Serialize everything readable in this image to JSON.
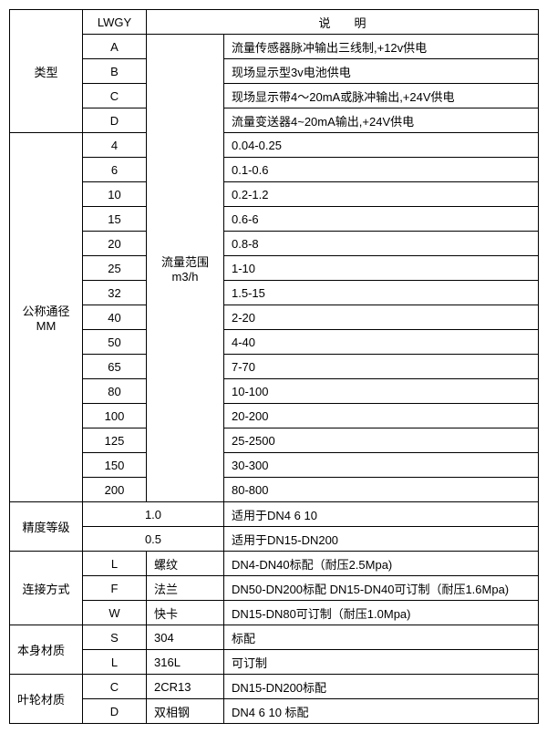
{
  "header": {
    "lwgy": "LWGY",
    "desc": "说　　明"
  },
  "type_section": {
    "label": "类型",
    "rows": [
      {
        "code": "A",
        "desc": "流量传感器脉冲输出三线制,+12v供电"
      },
      {
        "code": "B",
        "desc": "现场显示型3v电池供电"
      },
      {
        "code": "C",
        "desc": "现场显示带4～20mA或脉冲输出,+24V供电"
      },
      {
        "code": "D",
        "desc": "流量变送器4~20mA输出,+24V供电"
      }
    ]
  },
  "diameter_section": {
    "label_top": "公称通径",
    "label_bottom": "MM",
    "range_label_top": "流量范围",
    "range_label_bottom": "m3/h",
    "rows": [
      {
        "code": "4",
        "desc": "0.04-0.25"
      },
      {
        "code": "6",
        "desc": "0.1-0.6"
      },
      {
        "code": "10",
        "desc": "0.2-1.2"
      },
      {
        "code": "15",
        "desc": "0.6-6"
      },
      {
        "code": "20",
        "desc": "0.8-8"
      },
      {
        "code": "25",
        "desc": "1-10"
      },
      {
        "code": "32",
        "desc": "1.5-15"
      },
      {
        "code": "40",
        "desc": "2-20"
      },
      {
        "code": "50",
        "desc": "4-40"
      },
      {
        "code": "65",
        "desc": "7-70"
      },
      {
        "code": "80",
        "desc": "10-100"
      },
      {
        "code": "100",
        "desc": "20-200"
      },
      {
        "code": "125",
        "desc": "25-2500"
      },
      {
        "code": "150",
        "desc": "30-300"
      },
      {
        "code": "200",
        "desc": "80-800"
      }
    ]
  },
  "accuracy_section": {
    "label": "精度等级",
    "rows": [
      {
        "grade": "1.0",
        "desc": "适用于DN4  6  10"
      },
      {
        "grade": "0.5",
        "desc": "适用于DN15-DN200"
      }
    ]
  },
  "connection_section": {
    "label": "连接方式",
    "rows": [
      {
        "code": "L",
        "name": "螺纹",
        "desc": "DN4-DN40标配（耐压2.5Mpa)"
      },
      {
        "code": "F",
        "name": "法兰",
        "desc": "DN50-DN200标配 DN15-DN40可订制（耐压1.6Mpa)"
      },
      {
        "code": "W",
        "name": "快卡",
        "desc": "DN15-DN80可订制（耐压1.0Mpa)"
      }
    ]
  },
  "body_material_section": {
    "label": "本身材质",
    "rows": [
      {
        "code": "S",
        "name": "304",
        "desc": "标配"
      },
      {
        "code": "L",
        "name": "316L",
        "desc": "可订制"
      }
    ]
  },
  "impeller_material_section": {
    "label": "叶轮材质",
    "rows": [
      {
        "code": "C",
        "name": "2CR13",
        "desc": "DN15-DN200标配"
      },
      {
        "code": "D",
        "name": "双相钢",
        "desc": "DN4 6 10 标配"
      }
    ]
  }
}
